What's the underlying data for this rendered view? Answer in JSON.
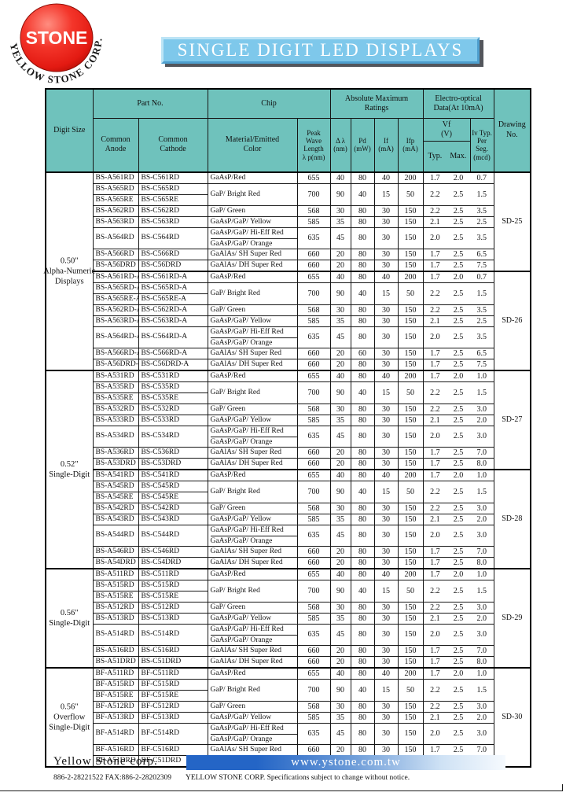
{
  "logo": {
    "ball_text": "STONE",
    "arc_text": "YELLOW   STONE   CORP."
  },
  "banner": {
    "title": "SINGLE DIGIT LED DISPLAYS"
  },
  "table": {
    "headers": {
      "digit_size": "Digit Size",
      "part_no": "Part No.",
      "chip": "Chip",
      "abs_max": "Absolute Maximum\nRatings",
      "electro": "Electro-optical\nData(At 10mA)",
      "drawing": "Drawing\nNo.",
      "common_anode": "Common\nAnode",
      "common_cathode": "Common\nCathode",
      "material": "Material/Emitted\nColor",
      "peak": "Peak\nWave\nLength\nλ p(nm)",
      "delta_lambda": "Δ λ\n(nm)",
      "pd": "Pd\n(mW)",
      "if": "If\n(mA)",
      "ifp": "Ifp\n(mA)",
      "vf": "Vf\n(V)",
      "typ": "Typ.",
      "max": "Max.",
      "iv": "Iv Typ.\nPer Seg.\n(mcd)"
    },
    "groups": [
      {
        "label": "0.50\"\nAlpha-Numeric\nDisplays",
        "blocks": [
          0,
          1
        ]
      },
      {
        "label": "0.52\"\nSingle-Digit",
        "blocks": [
          2,
          3
        ]
      },
      {
        "label": "0.56\"\nSingle-Digit",
        "blocks": [
          4
        ]
      },
      {
        "label": "0.56\"\nOverflow\nSingle-Digit",
        "blocks": [
          5
        ]
      }
    ],
    "blocks": [
      {
        "drawing": "SD-25",
        "rows": [
          {
            "anode": "BS-A561RD",
            "cathode": "BS-C561RD",
            "chip": "GaAsP/Red",
            "values": [
              "655",
              "40",
              "80",
              "40",
              "200",
              "1.7",
              "2.0",
              "0.7"
            ]
          },
          {
            "anode": "BS-A565RD",
            "cathode": "BS-C565RD",
            "chip": "GaP/ Bright Red",
            "span": 2,
            "values": [
              "700",
              "90",
              "40",
              "15",
              "50",
              "2.2",
              "2.5",
              "1.5"
            ]
          },
          {
            "anode": "BS-A565RE",
            "cathode": "BS-C565RE",
            "cont": true
          },
          {
            "anode": "BS-A562RD",
            "cathode": "BS-C562RD",
            "chip": "GaP/ Green",
            "values": [
              "568",
              "30",
              "80",
              "30",
              "150",
              "2.2",
              "2.5",
              "3.5"
            ]
          },
          {
            "anode": "BS-A563RD",
            "cathode": "BS-C563RD",
            "chip": "GaAsP/GaP/ Yellow",
            "values": [
              "585",
              "35",
              "80",
              "30",
              "150",
              "2.1",
              "2.5",
              "2.5"
            ]
          },
          {
            "anode": "BS-A564RD",
            "cathode": "BS-C564RD",
            "chip": "GaAsP/GaP/ Hi-Eff Red",
            "chip2": "GaAsP/GaP/ Orange",
            "tall": true,
            "values": [
              "635",
              "45",
              "80",
              "30",
              "150",
              "2.0",
              "2.5",
              "3.5"
            ]
          },
          {
            "anode": "BS-A566RD",
            "cathode": "BS-C566RD",
            "chip": "GaAlAs/ SH Super Red",
            "values": [
              "660",
              "20",
              "80",
              "30",
              "150",
              "1.7",
              "2.5",
              "6.5"
            ]
          },
          {
            "anode": "BS-A56DRD",
            "cathode": "BS-C56DRD",
            "chip": "GaAlAs/ DH Super Red",
            "values": [
              "660",
              "20",
              "80",
              "30",
              "150",
              "1.7",
              "2.5",
              "7.5"
            ]
          }
        ]
      },
      {
        "drawing": "SD-26",
        "rows": [
          {
            "anode": "BS-A561RD-A",
            "cathode": "BS-C561RD-A",
            "chip": "GaAsP/Red",
            "values": [
              "655",
              "40",
              "80",
              "40",
              "200",
              "1.7",
              "2.0",
              "0.7"
            ]
          },
          {
            "anode": "BS-A565RD-A",
            "cathode": "BS-C565RD-A",
            "chip": "GaP/ Bright Red",
            "span": 2,
            "values": [
              "700",
              "90",
              "40",
              "15",
              "50",
              "2.2",
              "2.5",
              "1.5"
            ]
          },
          {
            "anode": "BS-A565RE-A",
            "cathode": "BS-C565RE-A",
            "cont": true
          },
          {
            "anode": "BS-A562RD-A",
            "cathode": "BS-C562RD-A",
            "chip": "GaP/ Green",
            "values": [
              "568",
              "30",
              "80",
              "30",
              "150",
              "2.2",
              "2.5",
              "3.5"
            ]
          },
          {
            "anode": "BS-A563RD-A",
            "cathode": "BS-C563RD-A",
            "chip": "GaAsP/GaP/ Yellow",
            "values": [
              "585",
              "35",
              "80",
              "30",
              "150",
              "2.1",
              "2.5",
              "2.5"
            ]
          },
          {
            "anode": "BS-A564RD-A",
            "cathode": "BS-C564RD-A",
            "chip": "GaAsP/GaP/ Hi-Eff Red",
            "chip2": "GaAsP/GaP/ Orange",
            "tall": true,
            "values": [
              "635",
              "45",
              "80",
              "30",
              "150",
              "2.0",
              "2.5",
              "3.5"
            ]
          },
          {
            "anode": "BS-A566RD-A",
            "cathode": "BS-C566RD-A",
            "chip": "GaAlAs/ SH Super Red",
            "values": [
              "660",
              "20",
              "60",
              "30",
              "150",
              "1.7",
              "2.5",
              "6.5"
            ]
          },
          {
            "anode": "BS-A56DRD-A",
            "cathode": "BS-C56DRD-A",
            "chip": "GaAlAs/ DH Super Red",
            "values": [
              "660",
              "20",
              "80",
              "30",
              "150",
              "1.7",
              "2.5",
              "7.5"
            ]
          }
        ]
      },
      {
        "drawing": "SD-27",
        "rows": [
          {
            "anode": "BS-A531RD",
            "cathode": "BS-C531RD",
            "chip": "GaAsP/Red",
            "values": [
              "655",
              "40",
              "80",
              "40",
              "200",
              "1.7",
              "2.0",
              "1.0"
            ]
          },
          {
            "anode": "BS-A535RD",
            "cathode": "BS-C535RD",
            "chip": "GaP/ Bright Red",
            "span": 2,
            "values": [
              "700",
              "90",
              "40",
              "15",
              "50",
              "2.2",
              "2.5",
              "1.5"
            ]
          },
          {
            "anode": "BS-A535RE",
            "cathode": "BS-C535RE",
            "cont": true
          },
          {
            "anode": "BS-A532RD",
            "cathode": "BS-C532RD",
            "chip": "GaP/ Green",
            "values": [
              "568",
              "30",
              "80",
              "30",
              "150",
              "2.2",
              "2.5",
              "3.0"
            ]
          },
          {
            "anode": "BS-A533RD",
            "cathode": "BS-C533RD",
            "chip": "GaAsP/GaP/ Yellow",
            "values": [
              "585",
              "35",
              "80",
              "30",
              "150",
              "2.1",
              "2.5",
              "2.0"
            ]
          },
          {
            "anode": "BS-A534RD",
            "cathode": "BS-C534RD",
            "chip": "GaAsP/GaP/ Hi-Eff Red",
            "chip2": "GaAsP/GaP/ Orange",
            "tall": true,
            "values": [
              "635",
              "45",
              "80",
              "30",
              "150",
              "2.0",
              "2.5",
              "3.0"
            ]
          },
          {
            "anode": "BS-A536RD",
            "cathode": "BS-C536RD",
            "chip": "GaAlAs/ SH Super Red",
            "values": [
              "660",
              "20",
              "80",
              "30",
              "150",
              "1.7",
              "2.5",
              "7.0"
            ]
          },
          {
            "anode": "BS-A53DRD",
            "cathode": "BS-C53DRD",
            "chip": "GaAlAs/ DH Super Red",
            "values": [
              "660",
              "20",
              "80",
              "30",
              "150",
              "1.7",
              "2.5",
              "8.0"
            ]
          }
        ]
      },
      {
        "drawing": "SD-28",
        "rows": [
          {
            "anode": "BS-A541RD",
            "cathode": "BS-C541RD",
            "chip": "GaAsP/Red",
            "values": [
              "655",
              "40",
              "80",
              "40",
              "200",
              "1.7",
              "2.0",
              "1.0"
            ]
          },
          {
            "anode": "BS-A545RD",
            "cathode": "BS-C545RD",
            "chip": "GaP/ Bright Red",
            "span": 2,
            "values": [
              "700",
              "90",
              "40",
              "15",
              "50",
              "2.2",
              "2.5",
              "1.5"
            ]
          },
          {
            "anode": "BS-A545RE",
            "cathode": "BS-C545RE",
            "cont": true
          },
          {
            "anode": "BS-A542RD",
            "cathode": "BS-C542RD",
            "chip": "GaP/ Green",
            "values": [
              "568",
              "30",
              "80",
              "30",
              "150",
              "2.2",
              "2.5",
              "3.0"
            ]
          },
          {
            "anode": "BS-A543RD",
            "cathode": "BS-C543RD",
            "chip": "GaAsP/GaP/ Yellow",
            "values": [
              "585",
              "35",
              "80",
              "30",
              "150",
              "2.1",
              "2.5",
              "2.0"
            ]
          },
          {
            "anode": "BS-A544RD",
            "cathode": "BS-C544RD",
            "chip": "GaAsP/GaP/ Hi-Eff Red",
            "chip2": "GaAsP/GaP/ Orange",
            "tall": true,
            "values": [
              "635",
              "45",
              "80",
              "30",
              "150",
              "2.0",
              "2.5",
              "3.0"
            ]
          },
          {
            "anode": "BS-A546RD",
            "cathode": "BS-C546RD",
            "chip": "GaAlAs/ SH Super Red",
            "values": [
              "660",
              "20",
              "80",
              "30",
              "150",
              "1.7",
              "2.5",
              "7.0"
            ]
          },
          {
            "anode": "BS-A54DRD",
            "cathode": "BS-C54DRD",
            "chip": "GaAlAs/ DH Super Red",
            "values": [
              "660",
              "20",
              "80",
              "30",
              "150",
              "1.7",
              "2.5",
              "8.0"
            ]
          }
        ]
      },
      {
        "drawing": "SD-29",
        "rows": [
          {
            "anode": "BS-A511RD",
            "cathode": "BS-C511RD",
            "chip": "GaAsP/Red",
            "values": [
              "655",
              "40",
              "80",
              "40",
              "200",
              "1.7",
              "2.0",
              "1.0"
            ]
          },
          {
            "anode": "BS-A515RD",
            "cathode": "BS-C515RD",
            "chip": "GaP/ Bright Red",
            "span": 2,
            "values": [
              "700",
              "90",
              "40",
              "15",
              "50",
              "2.2",
              "2.5",
              "1.5"
            ]
          },
          {
            "anode": "BS-A515RE",
            "cathode": "BS-C515RE",
            "cont": true
          },
          {
            "anode": "BS-A512RD",
            "cathode": "BS-C512RD",
            "chip": "GaP/ Green",
            "values": [
              "568",
              "30",
              "80",
              "30",
              "150",
              "2.2",
              "2.5",
              "3.0"
            ]
          },
          {
            "anode": "BS-A513RD",
            "cathode": "BS-C513RD",
            "chip": "GaAsP/GaP/ Yellow",
            "values": [
              "585",
              "35",
              "80",
              "30",
              "150",
              "2.1",
              "2.5",
              "2.0"
            ]
          },
          {
            "anode": "BS-A514RD",
            "cathode": "BS-C514RD",
            "chip": "GaAsP/GaP/ Hi-Eff Red",
            "chip2": "GaAsP/GaP/ Orange",
            "tall": true,
            "values": [
              "635",
              "45",
              "80",
              "30",
              "150",
              "2.0",
              "2.5",
              "3.0"
            ]
          },
          {
            "anode": "BS-A516RD",
            "cathode": "BS-C516RD",
            "chip": "GaAlAs/ SH Super Red",
            "values": [
              "660",
              "20",
              "80",
              "30",
              "150",
              "1.7",
              "2.5",
              "7.0"
            ]
          },
          {
            "anode": "BS-A51DRD",
            "cathode": "BS-C51DRD",
            "chip": "GaAlAs/ DH Super Red",
            "values": [
              "660",
              "20",
              "80",
              "30",
              "150",
              "1.7",
              "2.5",
              "8.0"
            ]
          }
        ]
      },
      {
        "drawing": "SD-30",
        "rows": [
          {
            "anode": "BF-A511RD",
            "cathode": "BF-C511RD",
            "chip": "GaAsP/Red",
            "values": [
              "655",
              "40",
              "80",
              "40",
              "200",
              "1.7",
              "2.0",
              "1.0"
            ]
          },
          {
            "anode": "BF-A515RD",
            "cathode": "BF-C515RD",
            "chip": "GaP/ Bright Red",
            "span": 2,
            "values": [
              "700",
              "90",
              "40",
              "15",
              "50",
              "2.2",
              "2.5",
              "1.5"
            ]
          },
          {
            "anode": "BF-A515RE",
            "cathode": "BF-C515RE",
            "cont": true
          },
          {
            "anode": "BF-A512RD",
            "cathode": "BF-C512RD",
            "chip": "GaP/ Green",
            "values": [
              "568",
              "30",
              "80",
              "30",
              "150",
              "2.2",
              "2.5",
              "3.0"
            ]
          },
          {
            "anode": "BF-A513RD",
            "cathode": "BF-C513RD",
            "chip": "GaAsP/GaP/ Yellow",
            "values": [
              "585",
              "35",
              "80",
              "30",
              "150",
              "2.1",
              "2.5",
              "2.0"
            ]
          },
          {
            "anode": "BF-A514RD",
            "cathode": "BF-C514RD",
            "chip": "GaAsP/GaP/ Hi-Eff Red",
            "chip2": "GaAsP/GaP/ Orange",
            "tall": true,
            "values": [
              "635",
              "45",
              "80",
              "30",
              "150",
              "2.0",
              "2.5",
              "3.0"
            ]
          },
          {
            "anode": "BF-A516RD",
            "cathode": "BF-C516RD",
            "chip": "GaAlAs/ SH Super Red",
            "values": [
              "660",
              "20",
              "80",
              "30",
              "150",
              "1.7",
              "2.5",
              "7.0"
            ]
          },
          {
            "anode": "BF-A51DRD",
            "cathode": "BF-C51DRD",
            "chip": "GaAlAs/ DH Super Red",
            "values": [
              "660",
              "20",
              "80",
              "30",
              "150",
              "1.7",
              "2.5",
              "8.0"
            ]
          }
        ]
      }
    ]
  },
  "footer": {
    "company": "Yellow Stone corp.",
    "url": "www.ystone.com.tw",
    "contact": "886-2-28221522 FAX:886-2-28202309",
    "note": "YELLOW  STONE CORP. Specifications subject to change without notice."
  },
  "colors": {
    "header_teal": "#6FC2BC",
    "banner_blue": "#7EC8EB",
    "logo_red": "#E8251B",
    "footer_bar_blue": "#2465C6"
  }
}
